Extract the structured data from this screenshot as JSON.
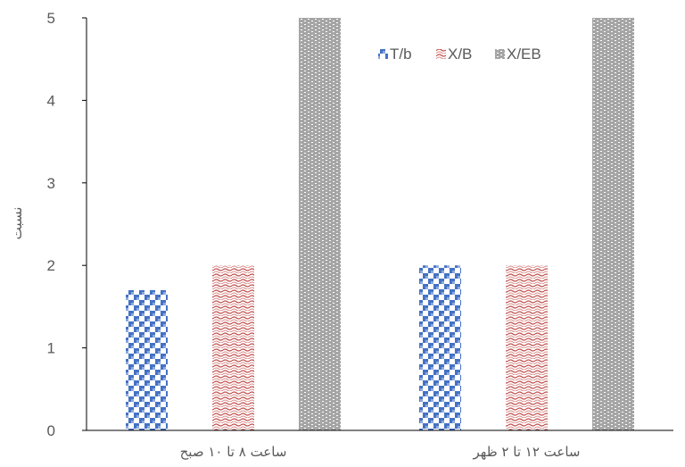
{
  "chart_data": {
    "type": "bar",
    "title": "",
    "xlabel": "",
    "ylabel": "نسبت",
    "ylim": [
      0,
      5
    ],
    "yticks": [
      "0",
      "1",
      "2",
      "3",
      "4",
      "5"
    ],
    "categories": [
      "ساعت ۸ تا ۱۰ صبح",
      "ساعت ۱۲ تا ۲ ظهر"
    ],
    "series": [
      {
        "name": "T/b",
        "values": [
          1.7,
          2.0
        ],
        "color": "#4472C4",
        "pattern": "checker"
      },
      {
        "name": "X/B",
        "values": [
          2.0,
          2.0
        ],
        "color": "#C0504D",
        "pattern": "wave"
      },
      {
        "name": "X/EB",
        "values": [
          5.0,
          5.0
        ],
        "color": "#A5A5A5",
        "pattern": "brick"
      }
    ],
    "legend": "top-right inside plot",
    "grid": false
  }
}
